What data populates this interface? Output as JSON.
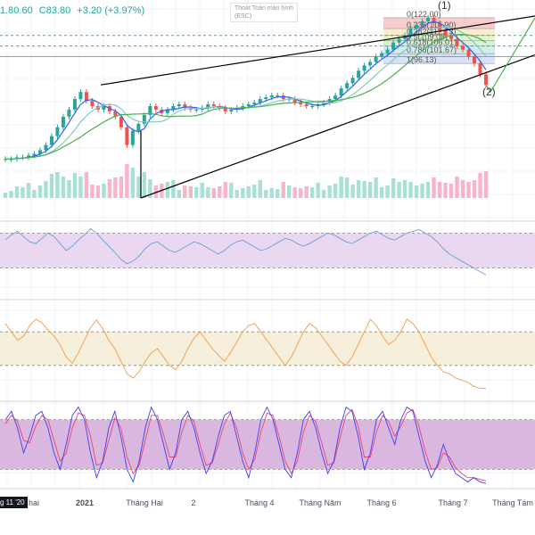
{
  "ohlc": {
    "open_fragment": "1.80.60",
    "close": "C83.80",
    "change": "+3.20 (+3.97%)",
    "color_up": "#26a69a"
  },
  "exit_fullscreen": {
    "line1": "Thoát Toàn màn hình",
    "line2": "(ESC)"
  },
  "crosshair_date": "g 11 '20",
  "colors": {
    "candle_up": "#26a69a",
    "candle_down": "#ef5350",
    "channel": "#000000",
    "rsi_line": "#6aa0d8",
    "rsi_band": "#e9d8ef",
    "osc_line": "#f29a4a",
    "osc_band": "#f6efdc",
    "stoch_k": "#3d3df0",
    "stoch_d": "#f0426a",
    "stoch_band": "#d9b7df",
    "ma_blue": "#2962ff",
    "ma_green": "#4caf50",
    "ma_teal": "#80cbc4"
  },
  "chart_data": {
    "type": "line",
    "symbol_hint": "price",
    "x_axis": {
      "tick_labels": [
        "hai",
        "2021",
        "Tháng Hai",
        "2",
        "Tháng 4",
        "Tháng Năm",
        "Tháng 6",
        "Tháng 7",
        "Tháng Tám"
      ]
    },
    "price_series": {
      "name": "",
      "ylim": [
        20,
        125
      ],
      "values": [
        42,
        42,
        43,
        43,
        44,
        45,
        47,
        50,
        55,
        60,
        66,
        70,
        76,
        80,
        75,
        72,
        70,
        72,
        69,
        66,
        60,
        50,
        58,
        62,
        67,
        72,
        70,
        68,
        70,
        72,
        73,
        71,
        70,
        70,
        71,
        73,
        72,
        71,
        69,
        70,
        71,
        72,
        73,
        74,
        76,
        77,
        78,
        78,
        76,
        76,
        74,
        73,
        72,
        72,
        73,
        74,
        76,
        78,
        82,
        85,
        88,
        92,
        95,
        97,
        100,
        102,
        104,
        108,
        110,
        112,
        116,
        118,
        120,
        122,
        119,
        115,
        112,
        110,
        106,
        104,
        100,
        96,
        90,
        84
      ]
    },
    "fibonacci": {
      "levels": [
        {
          "ratio": "0",
          "price": "122.00"
        },
        {
          "ratio": "0.236",
          "price": "115.90"
        },
        {
          "ratio": "0.382",
          "price": "112.13"
        },
        {
          "ratio": "0.5",
          "price": "109.08"
        },
        {
          "ratio": "0.618",
          "price": "106.01"
        },
        {
          "ratio": "0.786",
          "price": "101.67"
        },
        {
          "ratio": "1",
          "price": "96.13"
        }
      ]
    },
    "wave_labels": [
      "(1)",
      "(2)"
    ],
    "rsi": {
      "ylim": [
        0,
        100
      ],
      "band": [
        30,
        70
      ],
      "values": [
        62,
        68,
        72,
        66,
        60,
        58,
        64,
        70,
        66,
        58,
        50,
        55,
        62,
        68,
        75,
        70,
        62,
        55,
        48,
        40,
        35,
        38,
        44,
        52,
        58,
        60,
        55,
        50,
        48,
        52,
        56,
        60,
        58,
        54,
        50,
        46,
        50,
        56,
        60,
        62,
        58,
        54,
        50,
        52,
        56,
        60,
        64,
        62,
        58,
        55,
        58,
        62,
        66,
        70,
        68,
        64,
        60,
        58,
        62,
        66,
        70,
        72,
        68,
        64,
        62,
        66,
        70,
        72,
        74,
        70,
        66,
        60,
        52,
        46,
        42,
        38,
        34,
        30,
        26,
        22
      ]
    },
    "oscillator": {
      "ylim": [
        -100,
        100
      ],
      "band": [
        -40,
        40
      ],
      "values": [
        60,
        40,
        20,
        30,
        55,
        70,
        62,
        45,
        30,
        10,
        -20,
        -35,
        -10,
        20,
        50,
        68,
        48,
        20,
        0,
        -30,
        -60,
        -70,
        -55,
        -30,
        -10,
        0,
        -20,
        -40,
        -50,
        -30,
        0,
        25,
        40,
        20,
        0,
        -15,
        -30,
        -10,
        15,
        40,
        55,
        60,
        40,
        20,
        0,
        -20,
        -40,
        -20,
        10,
        40,
        60,
        50,
        30,
        10,
        -10,
        -30,
        -40,
        -20,
        10,
        40,
        70,
        55,
        30,
        10,
        20,
        40,
        70,
        60,
        40,
        10,
        -20,
        -40,
        -55,
        -60,
        -70,
        -75,
        -80,
        -90,
        -95,
        -95
      ]
    },
    "stochastic": {
      "ylim": [
        0,
        100
      ],
      "band": [
        20,
        80
      ],
      "k": [
        80,
        90,
        70,
        40,
        60,
        85,
        90,
        70,
        40,
        20,
        50,
        85,
        95,
        80,
        40,
        10,
        30,
        70,
        90,
        60,
        20,
        5,
        30,
        70,
        95,
        80,
        50,
        20,
        40,
        80,
        90,
        70,
        40,
        15,
        30,
        60,
        85,
        90,
        60,
        30,
        10,
        40,
        80,
        95,
        80,
        50,
        20,
        10,
        40,
        80,
        90,
        70,
        40,
        15,
        30,
        70,
        95,
        90,
        60,
        20,
        40,
        80,
        90,
        70,
        50,
        80,
        95,
        90,
        60,
        30,
        10,
        25,
        50,
        30,
        15,
        10,
        5,
        10,
        5,
        3
      ],
      "d": [
        75,
        85,
        78,
        55,
        52,
        72,
        85,
        80,
        55,
        30,
        40,
        70,
        88,
        85,
        60,
        25,
        28,
        55,
        82,
        70,
        35,
        15,
        25,
        55,
        85,
        85,
        62,
        35,
        35,
        65,
        85,
        78,
        50,
        25,
        28,
        50,
        75,
        88,
        70,
        40,
        20,
        32,
        65,
        88,
        85,
        60,
        30,
        15,
        30,
        65,
        85,
        78,
        52,
        25,
        28,
        58,
        85,
        92,
        72,
        35,
        35,
        65,
        85,
        78,
        60,
        72,
        88,
        92,
        72,
        42,
        20,
        22,
        40,
        35,
        22,
        15,
        10,
        10,
        8,
        6
      ]
    }
  }
}
